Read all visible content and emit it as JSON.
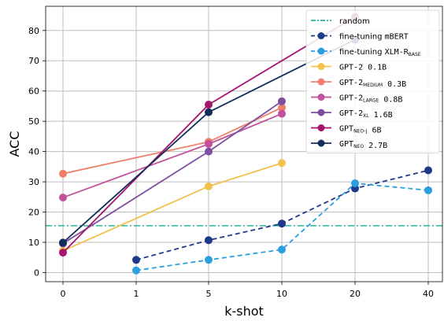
{
  "chart_data": {
    "type": "line",
    "categories": [
      "0",
      "1",
      "5",
      "10",
      "20",
      "40"
    ],
    "xlabel": "k-shot",
    "ylabel": "ACC",
    "ylim": [
      -3,
      88
    ],
    "yticks": [
      0,
      10,
      20,
      30,
      40,
      50,
      60,
      70,
      80
    ],
    "grid": true,
    "legend_position": "top-right",
    "baseline": {
      "name": "random",
      "value": 15.5,
      "color": "#2db39a"
    },
    "series": [
      {
        "name": "fine-tuning mBERT",
        "label_parts": [
          {
            "t": "fine-tuning ",
            "s": "plain"
          },
          {
            "t": "mBERT",
            "s": "mono"
          }
        ],
        "color": "#1f3a8a",
        "dashed": true,
        "points": [
          [
            1,
            4.2
          ],
          [
            2,
            10.7
          ],
          [
            3,
            16.2
          ],
          [
            4,
            27.8
          ],
          [
            5,
            33.8
          ]
        ]
      },
      {
        "name": "fine-tuning XLM-R BASE",
        "label_parts": [
          {
            "t": "fine-tuning ",
            "s": "plain"
          },
          {
            "t": "XLM-R",
            "s": "mono"
          },
          {
            "t": "BASE",
            "s": "sub"
          }
        ],
        "color": "#2b9fe0",
        "dashed": true,
        "points": [
          [
            1,
            0.7
          ],
          [
            2,
            4.2
          ],
          [
            3,
            7.6
          ],
          [
            4,
            29.5
          ],
          [
            5,
            27.2
          ]
        ]
      },
      {
        "name": "GPT-2 0.1B",
        "label_parts": [
          {
            "t": "GPT-2 0.1B",
            "s": "mono"
          }
        ],
        "color": "#f2c14e",
        "dashed": false,
        "points": [
          [
            0,
            7.2
          ],
          [
            2,
            28.5
          ],
          [
            3,
            36.2
          ]
        ]
      },
      {
        "name": "GPT-2 MEDIUM 0.3B",
        "label_parts": [
          {
            "t": "GPT-2",
            "s": "mono"
          },
          {
            "t": "MEDIUM",
            "s": "sub"
          },
          {
            "t": " 0.3B",
            "s": "mono"
          }
        ],
        "color": "#f07f6a",
        "dashed": false,
        "points": [
          [
            0,
            32.7
          ],
          [
            2,
            43.2
          ],
          [
            3,
            54.5
          ]
        ]
      },
      {
        "name": "GPT-2 LARGE 0.8B",
        "label_parts": [
          {
            "t": "GPT-2",
            "s": "mono"
          },
          {
            "t": "LARGE",
            "s": "sub"
          },
          {
            "t": " 0.8B",
            "s": "mono"
          }
        ],
        "color": "#c0519a",
        "dashed": false,
        "points": [
          [
            0,
            24.8
          ],
          [
            2,
            42.5
          ],
          [
            3,
            52.5
          ]
        ]
      },
      {
        "name": "GPT-2 XL 1.6B",
        "label_parts": [
          {
            "t": "GPT-2",
            "s": "mono"
          },
          {
            "t": "XL",
            "s": "sub"
          },
          {
            "t": " 1.6B",
            "s": "mono"
          }
        ],
        "color": "#7d4fa0",
        "dashed": false,
        "points": [
          [
            0,
            9.6
          ],
          [
            2,
            40.0
          ],
          [
            3,
            56.6
          ]
        ]
      },
      {
        "name": "GPT NEO-J 6B",
        "label_parts": [
          {
            "t": "GPT",
            "s": "mono"
          },
          {
            "t": "NEO-J",
            "s": "sub"
          },
          {
            "t": " 6B",
            "s": "mono"
          }
        ],
        "color": "#a3166d",
        "dashed": false,
        "points": [
          [
            0,
            6.6
          ],
          [
            2,
            55.5
          ],
          [
            4,
            84.5
          ]
        ]
      },
      {
        "name": "GPT NEO 2.7B",
        "label_parts": [
          {
            "t": "GPT",
            "s": "mono"
          },
          {
            "t": "NEO",
            "s": "sub"
          },
          {
            "t": " 2.7B",
            "s": "mono"
          }
        ],
        "color": "#132d5a",
        "dashed": false,
        "points": [
          [
            0,
            9.9
          ],
          [
            2,
            53.0
          ],
          [
            4,
            77.0
          ]
        ]
      }
    ]
  }
}
